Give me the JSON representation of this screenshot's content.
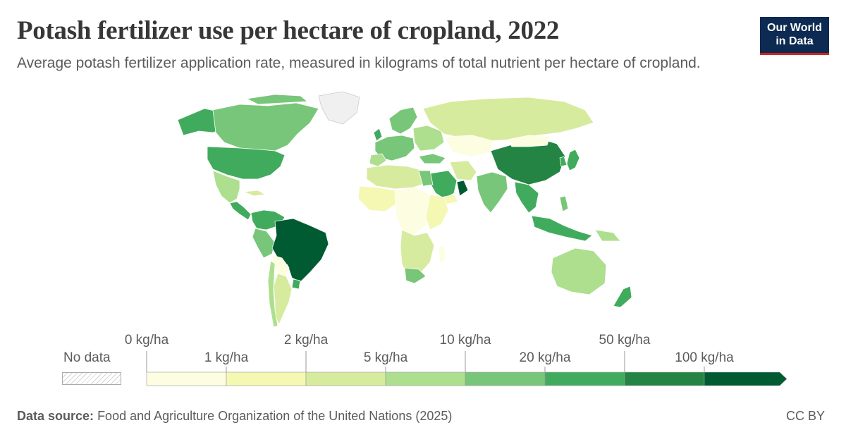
{
  "header": {
    "title": "Potash fertilizer use per hectare of cropland, 2022",
    "subtitle": "Average potash fertilizer application rate, measured in kilograms of total nutrient per hectare of cropland."
  },
  "logo": {
    "line1": "Our World",
    "line2": "in Data"
  },
  "legend": {
    "no_data_label": "No data",
    "upper_labels": [
      "0 kg/ha",
      "2 kg/ha",
      "10 kg/ha",
      "50 kg/ha"
    ],
    "lower_labels": [
      "1 kg/ha",
      "5 kg/ha",
      "20 kg/ha",
      "100 kg/ha"
    ],
    "bins": [
      {
        "from": 0,
        "to": 1,
        "color": "#fdfde2"
      },
      {
        "from": 1,
        "to": 2,
        "color": "#f4f8b2"
      },
      {
        "from": 2,
        "to": 5,
        "color": "#d7eb9e"
      },
      {
        "from": 5,
        "to": 10,
        "color": "#addf8f"
      },
      {
        "from": 10,
        "to": 20,
        "color": "#78c679"
      },
      {
        "from": 20,
        "to": 50,
        "color": "#41ab5d"
      },
      {
        "from": 50,
        "to": 100,
        "color": "#238443"
      },
      {
        "from": 100,
        "to": null,
        "color": "#005a32"
      }
    ]
  },
  "footer": {
    "source_label": "Data source:",
    "source_text": "Food and Agriculture Organization of the United Nations (2025)",
    "license": "CC BY"
  }
}
